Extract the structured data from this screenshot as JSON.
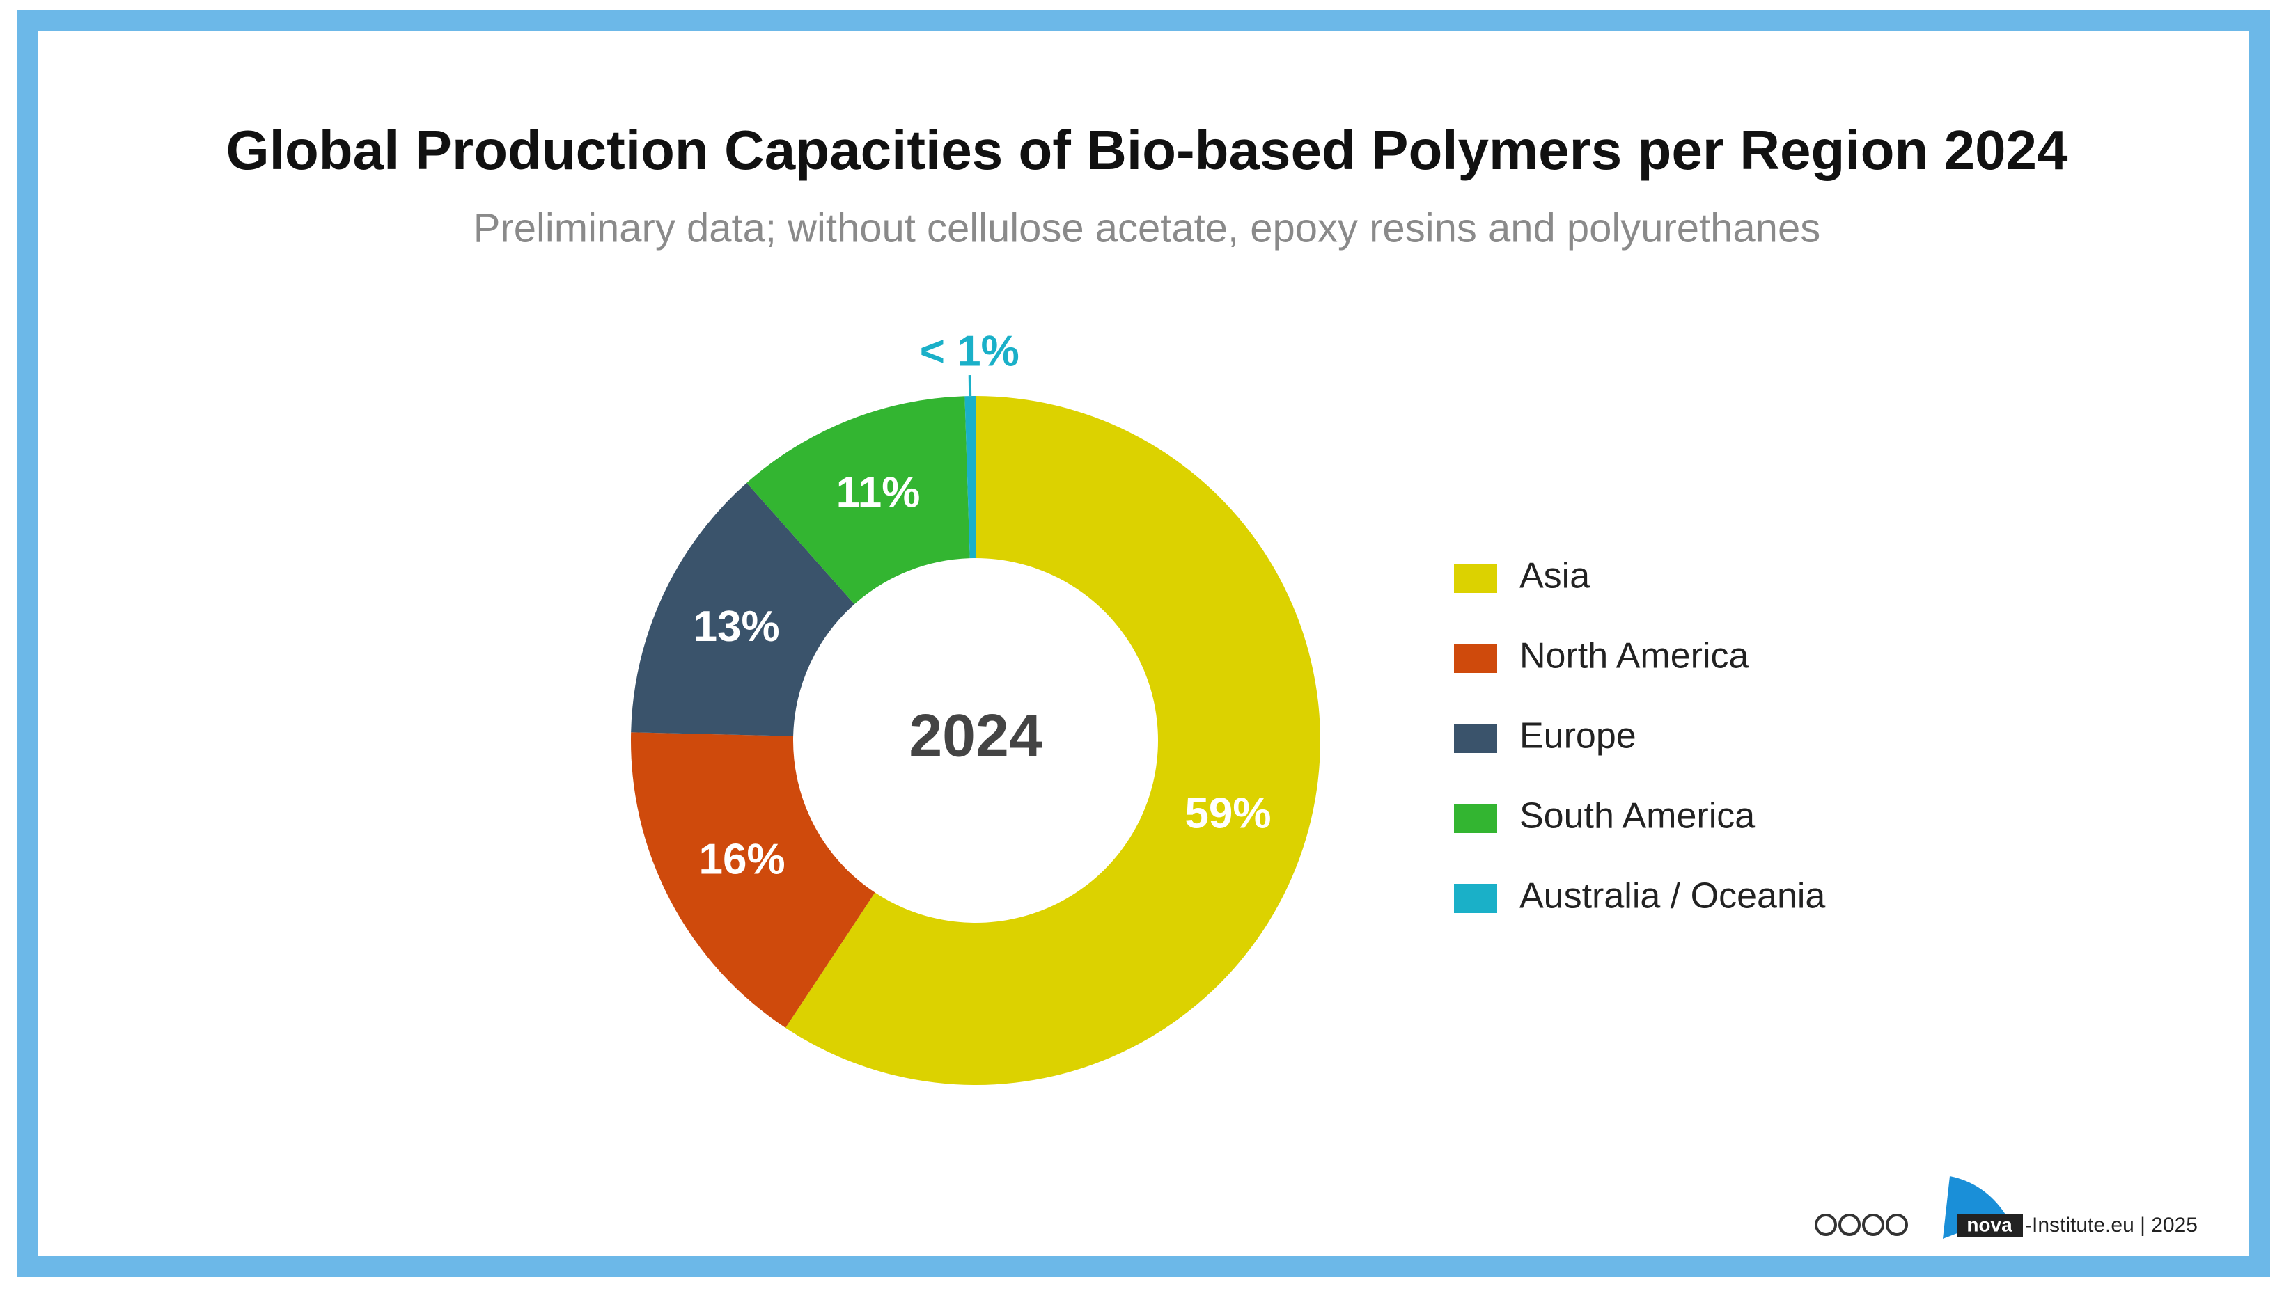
{
  "chart_data": {
    "type": "donut",
    "title": "Global Production Capacities of Bio-based Polymers per Region 2024",
    "subtitle": "Preliminary data; without cellulose acetate, epoxy resins and polyurethanes",
    "center_label": "2024",
    "categories": [
      "Asia",
      "North America",
      "Europe",
      "South America",
      "Australia / Oceania"
    ],
    "values": [
      59,
      16,
      13,
      11,
      0.5
    ],
    "value_labels": [
      "59%",
      "16%",
      "13%",
      "11%",
      "< 1%"
    ],
    "colors": [
      "#dcd200",
      "#cf4a0c",
      "#3a536b",
      "#33b531",
      "#1ab0c8"
    ],
    "legend": "right"
  },
  "footer": {
    "logo": "nova",
    "text": "-Institute.eu | 2025"
  }
}
